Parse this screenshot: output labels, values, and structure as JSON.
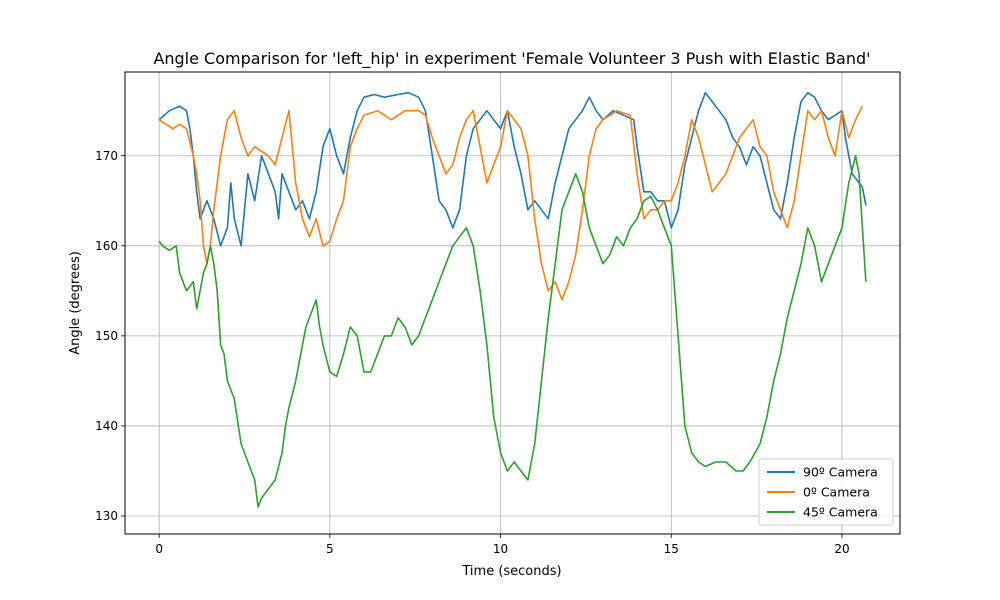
{
  "chart_data": {
    "type": "line",
    "title": "Angle Comparison for 'left_hip' in experiment 'Female Volunteer 3 Push with Elastic Band'",
    "xlabel": "Time (seconds)",
    "ylabel": "Angle (degrees)",
    "xlim": [
      -1.0,
      21.7
    ],
    "ylim": [
      128.0,
      179.3
    ],
    "xticks": [
      0,
      5,
      10,
      15,
      20
    ],
    "yticks": [
      130,
      140,
      150,
      160,
      170
    ],
    "grid": true,
    "legend_position": "lower right",
    "series": [
      {
        "name": "90º Camera",
        "color": "#1f77b4",
        "points": [
          [
            0.0,
            174
          ],
          [
            0.3,
            175
          ],
          [
            0.6,
            175.5
          ],
          [
            0.8,
            175
          ],
          [
            0.9,
            173
          ],
          [
            1.0,
            170
          ],
          [
            1.1,
            166
          ],
          [
            1.2,
            163
          ],
          [
            1.4,
            165
          ],
          [
            1.6,
            163
          ],
          [
            1.8,
            160
          ],
          [
            2.0,
            162
          ],
          [
            2.1,
            167
          ],
          [
            2.2,
            163
          ],
          [
            2.4,
            160
          ],
          [
            2.6,
            168
          ],
          [
            2.8,
            165
          ],
          [
            3.0,
            170
          ],
          [
            3.2,
            168
          ],
          [
            3.4,
            166
          ],
          [
            3.5,
            163
          ],
          [
            3.6,
            168
          ],
          [
            3.8,
            166
          ],
          [
            4.0,
            164
          ],
          [
            4.2,
            165
          ],
          [
            4.4,
            163
          ],
          [
            4.6,
            166
          ],
          [
            4.8,
            171
          ],
          [
            5.0,
            173
          ],
          [
            5.2,
            170
          ],
          [
            5.4,
            168
          ],
          [
            5.6,
            172
          ],
          [
            5.8,
            175
          ],
          [
            6.0,
            176.5
          ],
          [
            6.3,
            176.8
          ],
          [
            6.6,
            176.5
          ],
          [
            7.0,
            176.8
          ],
          [
            7.3,
            177
          ],
          [
            7.6,
            176.5
          ],
          [
            7.8,
            175
          ],
          [
            8.0,
            170
          ],
          [
            8.2,
            165
          ],
          [
            8.4,
            164
          ],
          [
            8.6,
            162
          ],
          [
            8.8,
            164
          ],
          [
            9.0,
            170
          ],
          [
            9.2,
            173
          ],
          [
            9.4,
            174
          ],
          [
            9.6,
            175
          ],
          [
            9.8,
            174
          ],
          [
            10.0,
            173
          ],
          [
            10.2,
            175
          ],
          [
            10.4,
            171
          ],
          [
            10.6,
            168
          ],
          [
            10.8,
            164
          ],
          [
            11.0,
            165
          ],
          [
            11.2,
            164
          ],
          [
            11.4,
            163
          ],
          [
            11.6,
            167
          ],
          [
            11.8,
            170
          ],
          [
            12.0,
            173
          ],
          [
            12.2,
            174
          ],
          [
            12.4,
            175
          ],
          [
            12.6,
            176.5
          ],
          [
            12.8,
            175
          ],
          [
            13.0,
            174
          ],
          [
            13.3,
            175
          ],
          [
            13.6,
            174.5
          ],
          [
            13.9,
            174
          ],
          [
            14.0,
            171
          ],
          [
            14.2,
            166
          ],
          [
            14.4,
            166
          ],
          [
            14.6,
            165
          ],
          [
            14.8,
            165
          ],
          [
            15.0,
            162
          ],
          [
            15.2,
            164
          ],
          [
            15.4,
            169
          ],
          [
            15.6,
            172
          ],
          [
            15.8,
            175
          ],
          [
            16.0,
            177
          ],
          [
            16.2,
            176
          ],
          [
            16.4,
            175
          ],
          [
            16.6,
            174
          ],
          [
            16.8,
            172
          ],
          [
            17.0,
            171
          ],
          [
            17.2,
            169
          ],
          [
            17.4,
            171
          ],
          [
            17.6,
            170
          ],
          [
            17.8,
            167
          ],
          [
            18.0,
            164
          ],
          [
            18.2,
            163
          ],
          [
            18.4,
            167
          ],
          [
            18.6,
            172
          ],
          [
            18.8,
            176
          ],
          [
            19.0,
            177
          ],
          [
            19.2,
            176.5
          ],
          [
            19.4,
            175
          ],
          [
            19.6,
            174
          ],
          [
            19.8,
            174.5
          ],
          [
            20.0,
            175
          ],
          [
            20.1,
            172
          ],
          [
            20.3,
            168
          ],
          [
            20.5,
            167
          ],
          [
            20.6,
            166.5
          ],
          [
            20.7,
            164.5
          ]
        ]
      },
      {
        "name": "0º Camera",
        "color": "#ff7f0e",
        "points": [
          [
            0.0,
            174
          ],
          [
            0.2,
            173.5
          ],
          [
            0.4,
            173
          ],
          [
            0.6,
            173.5
          ],
          [
            0.8,
            173
          ],
          [
            1.0,
            170
          ],
          [
            1.1,
            168
          ],
          [
            1.2,
            165
          ],
          [
            1.3,
            160
          ],
          [
            1.4,
            158
          ],
          [
            1.5,
            160
          ],
          [
            1.6,
            164
          ],
          [
            1.8,
            170
          ],
          [
            2.0,
            174
          ],
          [
            2.2,
            175
          ],
          [
            2.4,
            172
          ],
          [
            2.6,
            170
          ],
          [
            2.8,
            171
          ],
          [
            3.0,
            170.5
          ],
          [
            3.2,
            170
          ],
          [
            3.4,
            169
          ],
          [
            3.6,
            172
          ],
          [
            3.8,
            175
          ],
          [
            4.0,
            167
          ],
          [
            4.2,
            163
          ],
          [
            4.4,
            161
          ],
          [
            4.6,
            163
          ],
          [
            4.8,
            160
          ],
          [
            5.0,
            160.5
          ],
          [
            5.2,
            163
          ],
          [
            5.4,
            165
          ],
          [
            5.6,
            171
          ],
          [
            5.8,
            173
          ],
          [
            6.0,
            174.5
          ],
          [
            6.4,
            175
          ],
          [
            6.8,
            174
          ],
          [
            7.2,
            175
          ],
          [
            7.6,
            175
          ],
          [
            7.8,
            174.5
          ],
          [
            8.0,
            172
          ],
          [
            8.2,
            170
          ],
          [
            8.4,
            168
          ],
          [
            8.6,
            169
          ],
          [
            8.8,
            172
          ],
          [
            9.0,
            174
          ],
          [
            9.2,
            175
          ],
          [
            9.4,
            171
          ],
          [
            9.6,
            167
          ],
          [
            9.8,
            169
          ],
          [
            10.0,
            171
          ],
          [
            10.2,
            175
          ],
          [
            10.4,
            174
          ],
          [
            10.6,
            173
          ],
          [
            10.8,
            170
          ],
          [
            11.0,
            163
          ],
          [
            11.2,
            158
          ],
          [
            11.4,
            155
          ],
          [
            11.6,
            156
          ],
          [
            11.8,
            154
          ],
          [
            12.0,
            156
          ],
          [
            12.2,
            159
          ],
          [
            12.4,
            164
          ],
          [
            12.6,
            170
          ],
          [
            12.8,
            173
          ],
          [
            13.0,
            174
          ],
          [
            13.4,
            175
          ],
          [
            13.8,
            174.5
          ],
          [
            14.0,
            168
          ],
          [
            14.2,
            163
          ],
          [
            14.4,
            164
          ],
          [
            14.6,
            164
          ],
          [
            14.8,
            165
          ],
          [
            15.0,
            165
          ],
          [
            15.2,
            167
          ],
          [
            15.4,
            170
          ],
          [
            15.6,
            174
          ],
          [
            15.8,
            172
          ],
          [
            16.0,
            169
          ],
          [
            16.2,
            166
          ],
          [
            16.4,
            167
          ],
          [
            16.6,
            168
          ],
          [
            16.8,
            170
          ],
          [
            17.0,
            172
          ],
          [
            17.2,
            173
          ],
          [
            17.4,
            174
          ],
          [
            17.6,
            171
          ],
          [
            17.8,
            170
          ],
          [
            18.0,
            166
          ],
          [
            18.2,
            164
          ],
          [
            18.4,
            162
          ],
          [
            18.6,
            165
          ],
          [
            18.8,
            170
          ],
          [
            19.0,
            175
          ],
          [
            19.2,
            174
          ],
          [
            19.4,
            175
          ],
          [
            19.6,
            172
          ],
          [
            19.8,
            170
          ],
          [
            20.0,
            175
          ],
          [
            20.2,
            172
          ],
          [
            20.4,
            174
          ],
          [
            20.6,
            175.5
          ]
        ]
      },
      {
        "name": "45º Camera",
        "color": "#2ca02c",
        "points": [
          [
            0.0,
            160.5
          ],
          [
            0.1,
            160
          ],
          [
            0.3,
            159.5
          ],
          [
            0.5,
            160
          ],
          [
            0.6,
            157
          ],
          [
            0.8,
            155
          ],
          [
            1.0,
            156
          ],
          [
            1.1,
            153
          ],
          [
            1.3,
            157
          ],
          [
            1.4,
            158
          ],
          [
            1.5,
            160
          ],
          [
            1.6,
            158
          ],
          [
            1.7,
            155
          ],
          [
            1.8,
            149
          ],
          [
            1.9,
            148
          ],
          [
            2.0,
            145
          ],
          [
            2.2,
            143
          ],
          [
            2.4,
            138
          ],
          [
            2.5,
            137
          ],
          [
            2.6,
            136
          ],
          [
            2.8,
            134
          ],
          [
            2.9,
            131
          ],
          [
            3.0,
            132
          ],
          [
            3.2,
            133
          ],
          [
            3.4,
            134
          ],
          [
            3.6,
            137
          ],
          [
            3.7,
            140
          ],
          [
            3.8,
            142
          ],
          [
            4.0,
            145
          ],
          [
            4.2,
            149
          ],
          [
            4.3,
            151
          ],
          [
            4.5,
            153
          ],
          [
            4.6,
            154
          ],
          [
            4.7,
            151
          ],
          [
            4.8,
            149
          ],
          [
            5.0,
            146
          ],
          [
            5.2,
            145.5
          ],
          [
            5.4,
            148
          ],
          [
            5.6,
            151
          ],
          [
            5.8,
            150
          ],
          [
            6.0,
            146
          ],
          [
            6.2,
            146
          ],
          [
            6.4,
            148
          ],
          [
            6.6,
            150
          ],
          [
            6.8,
            150
          ],
          [
            7.0,
            152
          ],
          [
            7.2,
            151
          ],
          [
            7.4,
            149
          ],
          [
            7.6,
            150
          ],
          [
            7.8,
            152
          ],
          [
            8.0,
            154
          ],
          [
            8.2,
            156
          ],
          [
            8.4,
            158
          ],
          [
            8.6,
            160
          ],
          [
            8.8,
            161
          ],
          [
            9.0,
            162
          ],
          [
            9.2,
            160
          ],
          [
            9.4,
            155
          ],
          [
            9.6,
            149
          ],
          [
            9.8,
            141
          ],
          [
            10.0,
            137
          ],
          [
            10.2,
            135
          ],
          [
            10.4,
            136
          ],
          [
            10.6,
            135
          ],
          [
            10.8,
            134
          ],
          [
            11.0,
            138
          ],
          [
            11.2,
            145
          ],
          [
            11.4,
            152
          ],
          [
            11.6,
            158
          ],
          [
            11.8,
            164
          ],
          [
            12.0,
            166
          ],
          [
            12.2,
            168
          ],
          [
            12.4,
            166
          ],
          [
            12.6,
            162
          ],
          [
            12.8,
            160
          ],
          [
            13.0,
            158
          ],
          [
            13.2,
            159
          ],
          [
            13.4,
            161
          ],
          [
            13.6,
            160
          ],
          [
            13.8,
            162
          ],
          [
            14.0,
            163
          ],
          [
            14.2,
            165
          ],
          [
            14.4,
            165.5
          ],
          [
            14.6,
            164
          ],
          [
            14.8,
            162
          ],
          [
            15.0,
            160
          ],
          [
            15.1,
            155
          ],
          [
            15.2,
            150
          ],
          [
            15.3,
            145
          ],
          [
            15.4,
            140
          ],
          [
            15.6,
            137
          ],
          [
            15.8,
            136
          ],
          [
            16.0,
            135.5
          ],
          [
            16.3,
            136
          ],
          [
            16.6,
            136
          ],
          [
            16.9,
            135
          ],
          [
            17.1,
            135
          ],
          [
            17.3,
            136
          ],
          [
            17.6,
            138
          ],
          [
            17.8,
            141
          ],
          [
            18.0,
            145
          ],
          [
            18.2,
            148
          ],
          [
            18.4,
            152
          ],
          [
            18.6,
            155
          ],
          [
            18.8,
            158
          ],
          [
            19.0,
            162
          ],
          [
            19.2,
            160
          ],
          [
            19.4,
            156
          ],
          [
            19.6,
            158
          ],
          [
            19.8,
            160
          ],
          [
            20.0,
            162
          ],
          [
            20.2,
            167
          ],
          [
            20.4,
            170
          ],
          [
            20.5,
            168
          ],
          [
            20.6,
            162
          ],
          [
            20.7,
            156
          ]
        ]
      }
    ]
  }
}
